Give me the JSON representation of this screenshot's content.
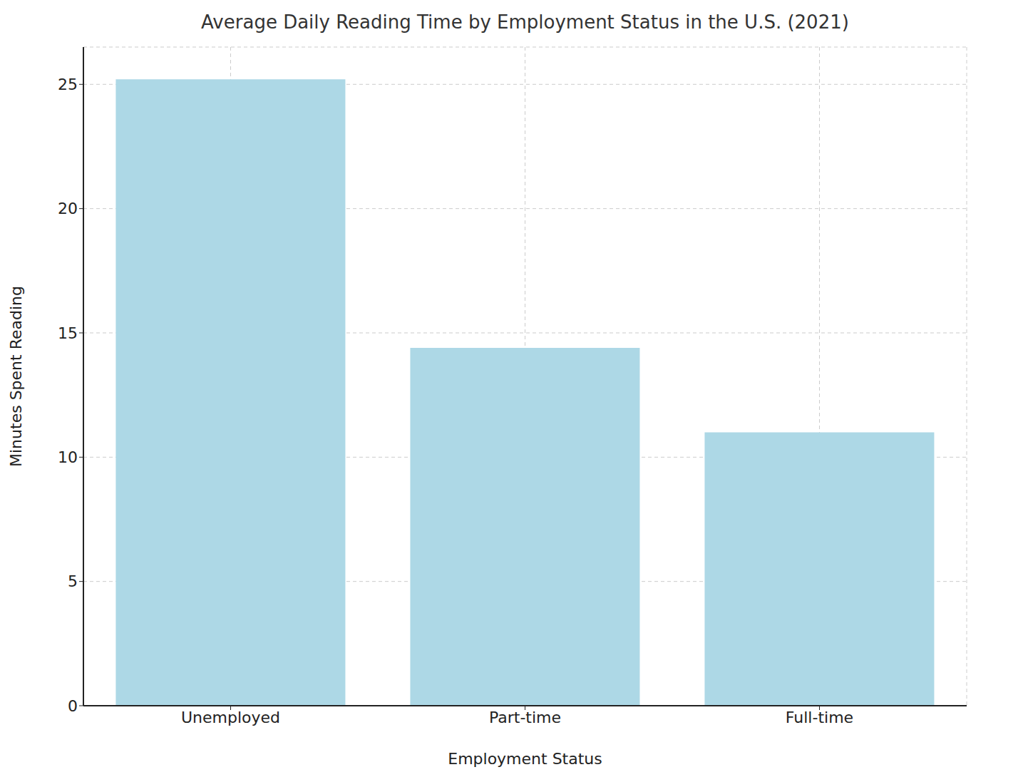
{
  "chart_data": {
    "type": "bar",
    "title": "Average Daily Reading Time by Employment Status in the U.S. (2021)",
    "x_label": "Employment Status",
    "y_label": "Minutes Spent Reading",
    "categories": [
      "Unemployed",
      "Part-time",
      "Full-time"
    ],
    "values": [
      25.2,
      14.4,
      11.0
    ],
    "color": "#add8e6",
    "ylim": [
      0,
      26.5
    ],
    "yticks": [
      0,
      5,
      10,
      15,
      20,
      25
    ],
    "grid": true
  }
}
